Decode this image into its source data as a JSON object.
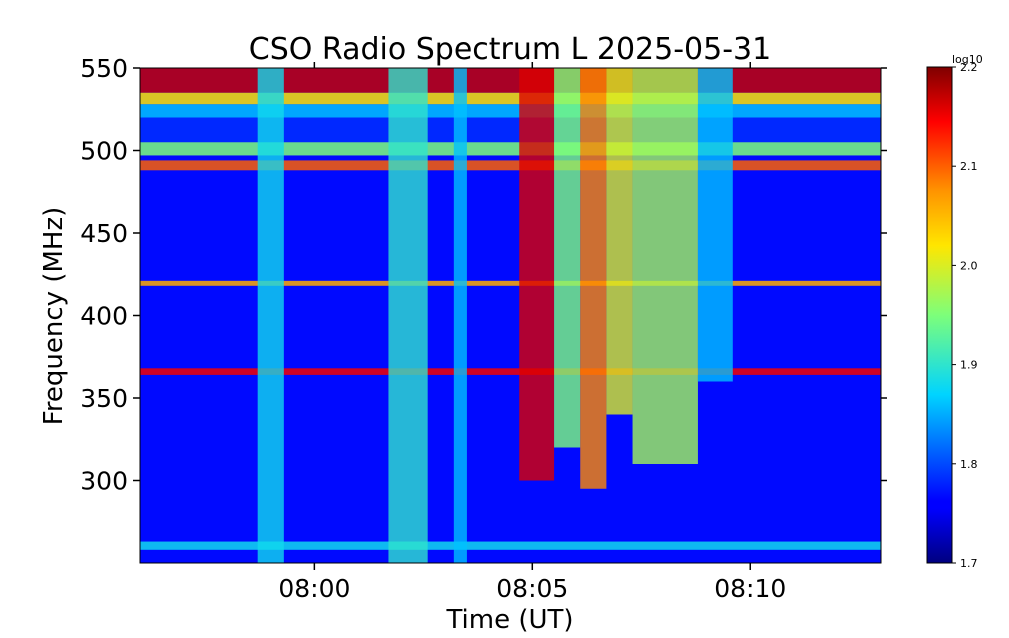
{
  "chart_data": {
    "type": "heatmap",
    "title": "CSO Radio Spectrum L 2025-05-31",
    "xlabel": "Time (UT)",
    "ylabel": "Frequency (MHz)",
    "x_ticks": [
      "08:00",
      "08:05",
      "08:10"
    ],
    "x_tick_minutes": [
      0,
      5,
      10
    ],
    "xlim_minutes": [
      -4.0,
      13.0
    ],
    "y_ticks": [
      300,
      350,
      400,
      450,
      500,
      550
    ],
    "ylim": [
      250,
      550
    ],
    "colorbar": {
      "label": "log10",
      "min": 1.7,
      "max": 2.2,
      "ticks": [
        "1.7",
        "1.8",
        "1.9",
        "2.0",
        "2.1",
        "2.2"
      ],
      "tick_values": [
        1.7,
        1.8,
        1.9,
        2.0,
        2.1,
        2.2
      ],
      "colormap": "jet"
    },
    "background_level": 1.76,
    "freq_bands": [
      {
        "f0": 535,
        "f1": 550,
        "level": 2.17
      },
      {
        "f0": 528,
        "f1": 535,
        "level": 2.02
      },
      {
        "f0": 520,
        "f1": 528,
        "level": 1.86
      },
      {
        "f0": 505,
        "f1": 520,
        "level": 1.78
      },
      {
        "f0": 497,
        "f1": 505,
        "level": 1.95
      },
      {
        "f0": 488,
        "f1": 494,
        "level": 2.1
      },
      {
        "f0": 364,
        "f1": 368,
        "level": 2.15
      },
      {
        "f0": 418,
        "f1": 421,
        "level": 2.06
      },
      {
        "f0": 258,
        "f1": 263,
        "level": 1.88
      }
    ],
    "time_bands": [
      {
        "t0": -1.3,
        "t1": -0.7,
        "level": 1.88
      },
      {
        "t0": 1.7,
        "t1": 2.6,
        "level": 1.9
      },
      {
        "t0": 3.2,
        "t1": 3.5,
        "level": 1.86
      },
      {
        "t0": 4.7,
        "t1": 5.5,
        "level": 2.16,
        "f_min": 300
      },
      {
        "t0": 5.5,
        "t1": 6.1,
        "level": 1.95,
        "f_min": 320
      },
      {
        "t0": 6.1,
        "t1": 6.7,
        "level": 2.08,
        "f_min": 295
      },
      {
        "t0": 6.7,
        "t1": 7.3,
        "level": 2.0,
        "f_min": 340
      },
      {
        "t0": 7.3,
        "t1": 8.8,
        "level": 1.97,
        "f_min": 310
      },
      {
        "t0": 8.8,
        "t1": 9.6,
        "level": 1.86,
        "f_min": 360
      }
    ]
  }
}
